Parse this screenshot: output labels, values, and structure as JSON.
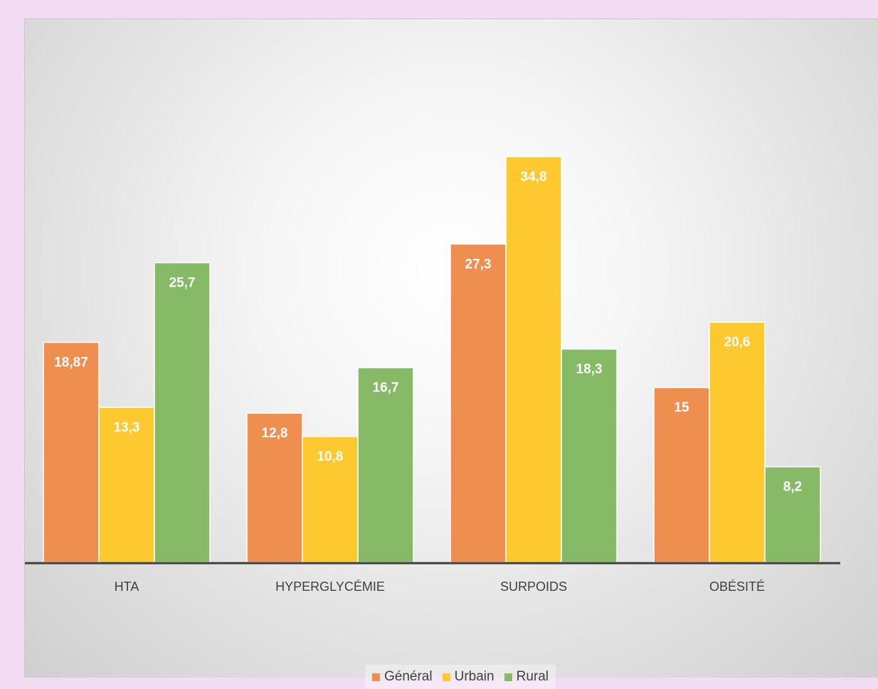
{
  "chart_data": {
    "type": "bar",
    "categories": [
      "HTA",
      "HYPERGLYCÉMIE",
      "SURPOIDS",
      "OBÉSITÉ"
    ],
    "series": [
      {
        "name": "Général",
        "color": "#ef8f4f",
        "values": [
          18.87,
          12.8,
          27.3,
          15
        ],
        "labels": [
          "18,87",
          "12,8",
          "27,3",
          "15"
        ]
      },
      {
        "name": "Urbain",
        "color": "#fec82f",
        "values": [
          13.3,
          10.8,
          34.8,
          20.6
        ],
        "labels": [
          "13,3",
          "10,8",
          "34,8",
          "20,6"
        ]
      },
      {
        "name": "Rural",
        "color": "#86ba66",
        "values": [
          25.7,
          16.7,
          18.3,
          8.2
        ],
        "labels": [
          "25,7",
          "16,7",
          "18,3",
          "8,2"
        ]
      }
    ],
    "title": "",
    "xlabel": "",
    "ylabel": "",
    "ylim": [
      0,
      37
    ],
    "grid": false,
    "legend_position": "bottom",
    "data_labels": "inside-end"
  }
}
